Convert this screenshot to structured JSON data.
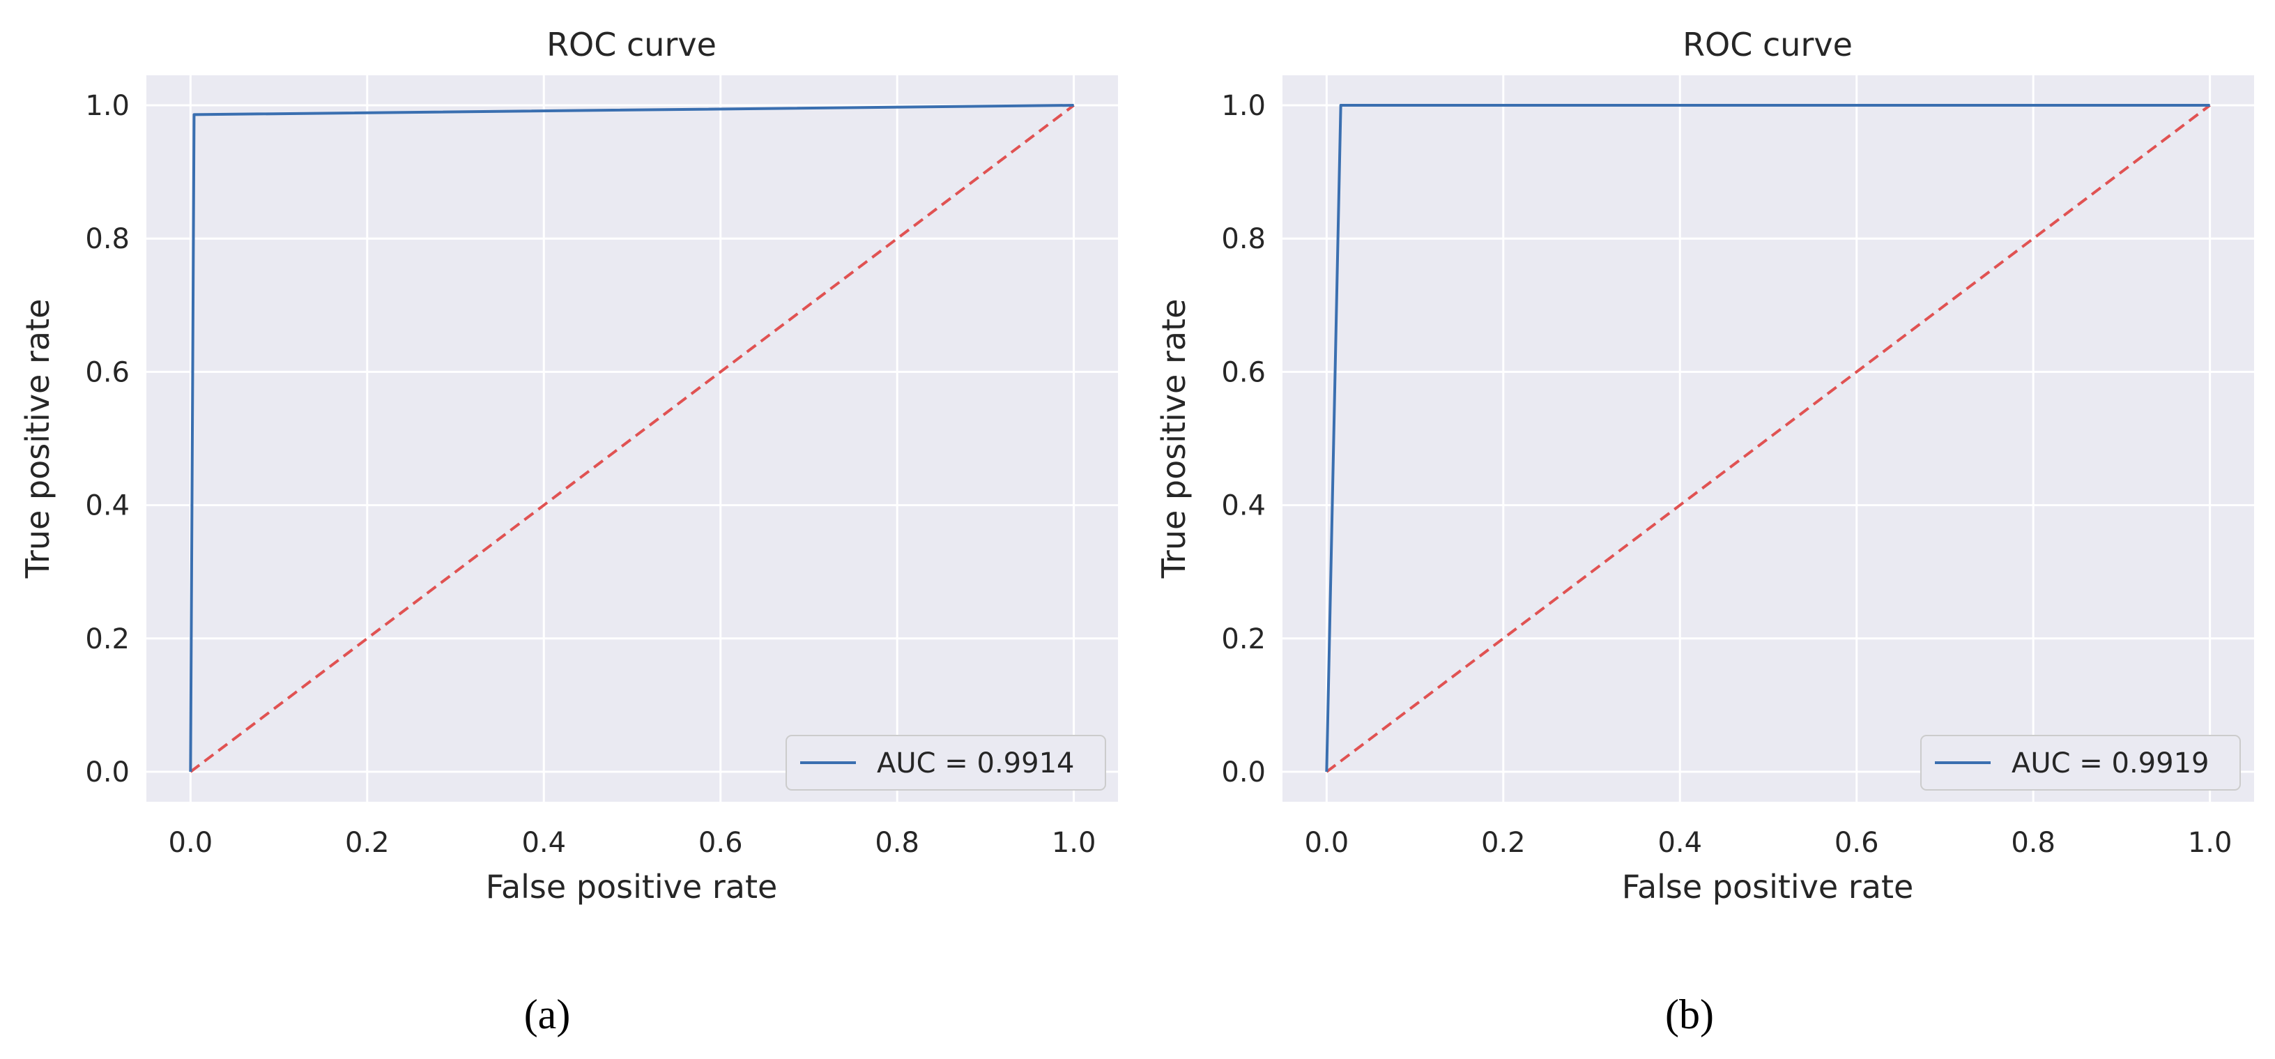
{
  "colors": {
    "background": "#eaeaf2",
    "grid": "#ffffff",
    "roc_line": "#3a6fb0",
    "chance_line": "#e05252",
    "legend_bg": "#eaeaf2",
    "legend_border": "#cccccc"
  },
  "chart_data": [
    {
      "type": "line",
      "panel_label": "(a)",
      "title": "ROC curve",
      "xlabel": "False positive rate",
      "ylabel": "True positive rate",
      "xlim": [
        -0.05,
        1.05
      ],
      "ylim": [
        -0.045,
        1.045
      ],
      "xticks": [
        0.0,
        0.2,
        0.4,
        0.6,
        0.8,
        1.0
      ],
      "yticks": [
        0.0,
        0.2,
        0.4,
        0.6,
        0.8,
        1.0
      ],
      "xtick_labels": [
        "0.0",
        "0.2",
        "0.4",
        "0.6",
        "0.8",
        "1.0"
      ],
      "ytick_labels": [
        "0.0",
        "0.2",
        "0.4",
        "0.6",
        "0.8",
        "1.0"
      ],
      "grid": true,
      "legend_loc": "lower-right",
      "series": [
        {
          "name": "AUC = 0.9914",
          "style": "solid",
          "color_key": "roc_line",
          "x": [
            0.0,
            0.004,
            1.0
          ],
          "y": [
            0.0,
            0.986,
            1.0
          ]
        },
        {
          "name": "chance",
          "style": "dashed",
          "color_key": "chance_line",
          "x": [
            0.0,
            1.0
          ],
          "y": [
            0.0,
            1.0
          ]
        }
      ],
      "legend_entries": [
        "AUC = 0.9914"
      ]
    },
    {
      "type": "line",
      "panel_label": "(b)",
      "title": "ROC curve",
      "xlabel": "False positive rate",
      "ylabel": "True positive rate",
      "xlim": [
        -0.05,
        1.05
      ],
      "ylim": [
        -0.045,
        1.045
      ],
      "xticks": [
        0.0,
        0.2,
        0.4,
        0.6,
        0.8,
        1.0
      ],
      "yticks": [
        0.0,
        0.2,
        0.4,
        0.6,
        0.8,
        1.0
      ],
      "xtick_labels": [
        "0.0",
        "0.2",
        "0.4",
        "0.6",
        "0.8",
        "1.0"
      ],
      "ytick_labels": [
        "0.0",
        "0.2",
        "0.4",
        "0.6",
        "0.8",
        "1.0"
      ],
      "grid": true,
      "legend_loc": "lower-right",
      "series": [
        {
          "name": "AUC = 0.9919",
          "style": "solid",
          "color_key": "roc_line",
          "x": [
            0.0,
            0.016,
            1.0
          ],
          "y": [
            0.0,
            1.0,
            1.0
          ]
        },
        {
          "name": "chance",
          "style": "dashed",
          "color_key": "chance_line",
          "x": [
            0.0,
            1.0
          ],
          "y": [
            0.0,
            1.0
          ]
        }
      ],
      "legend_entries": [
        "AUC = 0.9919"
      ]
    }
  ]
}
